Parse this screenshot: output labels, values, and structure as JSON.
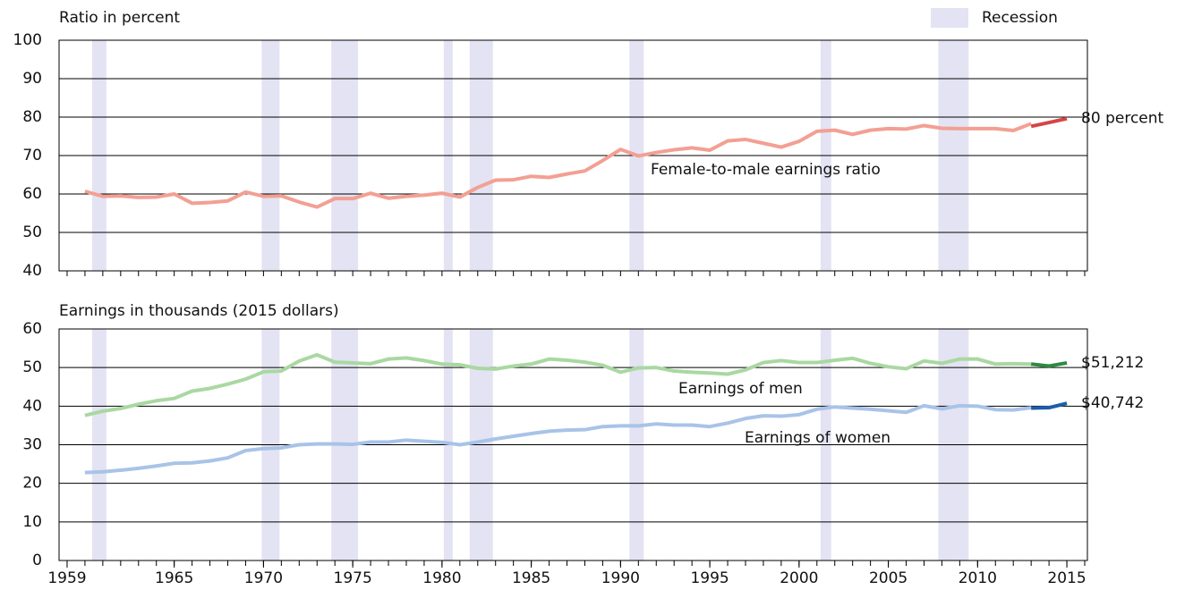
{
  "chart_data": [
    {
      "type": "line",
      "ylabel": "Ratio in percent",
      "legend": "Recession",
      "recession_color": "#e3e3f3",
      "recessions": [
        [
          1960.4,
          1961.2
        ],
        [
          1969.9,
          1970.9
        ],
        [
          1973.8,
          1975.3
        ],
        [
          1980.1,
          1980.6
        ],
        [
          1981.55,
          1982.85
        ],
        [
          1990.5,
          1991.3
        ],
        [
          2001.2,
          2001.8
        ],
        [
          2007.8,
          2009.5
        ]
      ],
      "x": [
        1960,
        1961,
        1962,
        1963,
        1964,
        1965,
        1966,
        1967,
        1968,
        1969,
        1970,
        1971,
        1972,
        1973,
        1974,
        1975,
        1976,
        1977,
        1978,
        1979,
        1980,
        1981,
        1982,
        1983,
        1984,
        1985,
        1986,
        1987,
        1988,
        1989,
        1990,
        1991,
        1992,
        1993,
        1994,
        1995,
        1996,
        1997,
        1998,
        1999,
        2000,
        2001,
        2002,
        2003,
        2004,
        2005,
        2006,
        2007,
        2008,
        2009,
        2010,
        2011,
        2012,
        2013,
        2014,
        2015
      ],
      "xlim": [
        1958.55,
        2016.15
      ],
      "ylim": [
        40,
        100
      ],
      "yticks": [
        40,
        50,
        60,
        70,
        80,
        90,
        100
      ],
      "grid": true,
      "series": [
        {
          "name": "Female-to-male earnings ratio",
          "color": "#f2a093",
          "values": [
            60.7,
            59.4,
            59.5,
            59.1,
            59.2,
            60.0,
            57.6,
            57.8,
            58.2,
            60.5,
            59.4,
            59.5,
            57.9,
            56.6,
            58.8,
            58.8,
            60.2,
            58.9,
            59.4,
            59.7,
            60.2,
            59.2,
            61.7,
            63.6,
            63.7,
            64.6,
            64.3,
            65.2,
            66.0,
            68.7,
            71.6,
            69.9,
            70.8,
            71.5,
            72.0,
            71.4,
            73.8,
            74.2,
            73.2,
            72.2,
            73.7,
            76.3,
            76.6,
            75.5,
            76.6,
            77.0,
            76.9,
            77.8,
            77.1,
            77.0,
            77.0,
            77.0,
            76.5,
            78.3,
            null,
            null
          ]
        },
        {
          "color": "#d54545",
          "values": [
            null,
            null,
            null,
            null,
            null,
            null,
            null,
            null,
            null,
            null,
            null,
            null,
            null,
            null,
            null,
            null,
            null,
            null,
            null,
            null,
            null,
            null,
            null,
            null,
            null,
            null,
            null,
            null,
            null,
            null,
            null,
            null,
            null,
            null,
            null,
            null,
            null,
            null,
            null,
            null,
            null,
            null,
            null,
            null,
            null,
            null,
            null,
            null,
            null,
            null,
            null,
            null,
            null,
            77.6,
            78.6,
            79.6
          ],
          "value_labels": [
            null,
            null,
            null,
            null,
            null,
            null,
            null,
            null,
            null,
            null,
            null,
            null,
            null,
            null,
            null,
            null,
            null,
            null,
            null,
            null,
            null,
            null,
            null,
            null,
            null,
            null,
            null,
            null,
            null,
            null,
            null,
            null,
            null,
            null,
            null,
            null,
            null,
            null,
            null,
            null,
            null,
            null,
            null,
            null,
            null,
            null,
            null,
            null,
            null,
            null,
            null,
            null,
            null,
            null,
            null,
            "80 percent"
          ]
        }
      ]
    },
    {
      "type": "line",
      "ylabel": "Earnings in thousands (2015 dollars)",
      "recessions": [
        [
          1960.4,
          1961.2
        ],
        [
          1969.9,
          1970.9
        ],
        [
          1973.8,
          1975.3
        ],
        [
          1980.1,
          1980.6
        ],
        [
          1981.55,
          1982.85
        ],
        [
          1990.5,
          1991.3
        ],
        [
          2001.2,
          2001.8
        ],
        [
          2007.8,
          2009.5
        ]
      ],
      "x": [
        1960,
        1961,
        1962,
        1963,
        1964,
        1965,
        1966,
        1967,
        1968,
        1969,
        1970,
        1971,
        1972,
        1973,
        1974,
        1975,
        1976,
        1977,
        1978,
        1979,
        1980,
        1981,
        1982,
        1983,
        1984,
        1985,
        1986,
        1987,
        1988,
        1989,
        1990,
        1991,
        1992,
        1993,
        1994,
        1995,
        1996,
        1997,
        1998,
        1999,
        2000,
        2001,
        2002,
        2003,
        2004,
        2005,
        2006,
        2007,
        2008,
        2009,
        2010,
        2011,
        2012,
        2013,
        2014,
        2015
      ],
      "xlim": [
        1958.55,
        2016.15
      ],
      "xticks": [
        1959,
        1965,
        1970,
        1975,
        1980,
        1985,
        1990,
        1995,
        2000,
        2005,
        2010,
        2015
      ],
      "ylim": [
        0,
        60
      ],
      "yticks": [
        0,
        10,
        20,
        30,
        40,
        50,
        60
      ],
      "grid": true,
      "series": [
        {
          "name": "Earnings of men",
          "color": "#a9d8a1",
          "values": [
            37.6,
            38.7,
            39.4,
            40.5,
            41.4,
            42.0,
            43.9,
            44.6,
            45.7,
            47.0,
            48.9,
            49.1,
            51.7,
            53.3,
            51.4,
            51.2,
            51.0,
            52.2,
            52.5,
            51.8,
            50.9,
            50.7,
            49.8,
            49.6,
            50.4,
            50.9,
            52.2,
            51.9,
            51.4,
            50.6,
            48.8,
            49.9,
            50.0,
            49.1,
            48.8,
            48.6,
            48.3,
            49.4,
            51.3,
            51.8,
            51.3,
            51.3,
            51.9,
            52.4,
            51.1,
            50.2,
            49.7,
            51.7,
            51.1,
            52.2,
            52.2,
            50.9,
            51.0,
            50.9,
            null,
            null
          ]
        },
        {
          "color": "#2e8a3f",
          "values": [
            null,
            null,
            null,
            null,
            null,
            null,
            null,
            null,
            null,
            null,
            null,
            null,
            null,
            null,
            null,
            null,
            null,
            null,
            null,
            null,
            null,
            null,
            null,
            null,
            null,
            null,
            null,
            null,
            null,
            null,
            null,
            null,
            null,
            null,
            null,
            null,
            null,
            null,
            null,
            null,
            null,
            null,
            null,
            null,
            null,
            null,
            null,
            null,
            null,
            null,
            null,
            null,
            null,
            50.9,
            50.4,
            51.212
          ],
          "value_labels": [
            null,
            null,
            null,
            null,
            null,
            null,
            null,
            null,
            null,
            null,
            null,
            null,
            null,
            null,
            null,
            null,
            null,
            null,
            null,
            null,
            null,
            null,
            null,
            null,
            null,
            null,
            null,
            null,
            null,
            null,
            null,
            null,
            null,
            null,
            null,
            null,
            null,
            null,
            null,
            null,
            null,
            null,
            null,
            null,
            null,
            null,
            null,
            null,
            null,
            null,
            null,
            null,
            null,
            null,
            null,
            "$51,212"
          ]
        },
        {
          "name": "Earnings of women",
          "color": "#a9c3e8",
          "values": [
            22.8,
            23.0,
            23.4,
            23.9,
            24.5,
            25.2,
            25.3,
            25.8,
            26.6,
            28.5,
            29.0,
            29.2,
            30.0,
            30.2,
            30.2,
            30.1,
            30.7,
            30.7,
            31.2,
            30.9,
            30.6,
            30.0,
            30.7,
            31.5,
            32.2,
            32.9,
            33.5,
            33.8,
            33.9,
            34.7,
            34.9,
            34.9,
            35.4,
            35.1,
            35.1,
            34.7,
            35.6,
            36.8,
            37.5,
            37.4,
            37.8,
            39.2,
            39.8,
            39.5,
            39.2,
            38.8,
            38.4,
            40.1,
            39.3,
            40.1,
            40.0,
            39.1,
            39.0,
            39.6,
            null,
            null
          ]
        },
        {
          "color": "#1d5ea8",
          "values": [
            null,
            null,
            null,
            null,
            null,
            null,
            null,
            null,
            null,
            null,
            null,
            null,
            null,
            null,
            null,
            null,
            null,
            null,
            null,
            null,
            null,
            null,
            null,
            null,
            null,
            null,
            null,
            null,
            null,
            null,
            null,
            null,
            null,
            null,
            null,
            null,
            null,
            null,
            null,
            null,
            null,
            null,
            null,
            null,
            null,
            null,
            null,
            null,
            null,
            null,
            null,
            null,
            null,
            39.5,
            39.6,
            40.742
          ],
          "value_labels": [
            null,
            null,
            null,
            null,
            null,
            null,
            null,
            null,
            null,
            null,
            null,
            null,
            null,
            null,
            null,
            null,
            null,
            null,
            null,
            null,
            null,
            null,
            null,
            null,
            null,
            null,
            null,
            null,
            null,
            null,
            null,
            null,
            null,
            null,
            null,
            null,
            null,
            null,
            null,
            null,
            null,
            null,
            null,
            null,
            null,
            null,
            null,
            null,
            null,
            null,
            null,
            null,
            null,
            null,
            null,
            "$40,742"
          ]
        }
      ]
    }
  ]
}
